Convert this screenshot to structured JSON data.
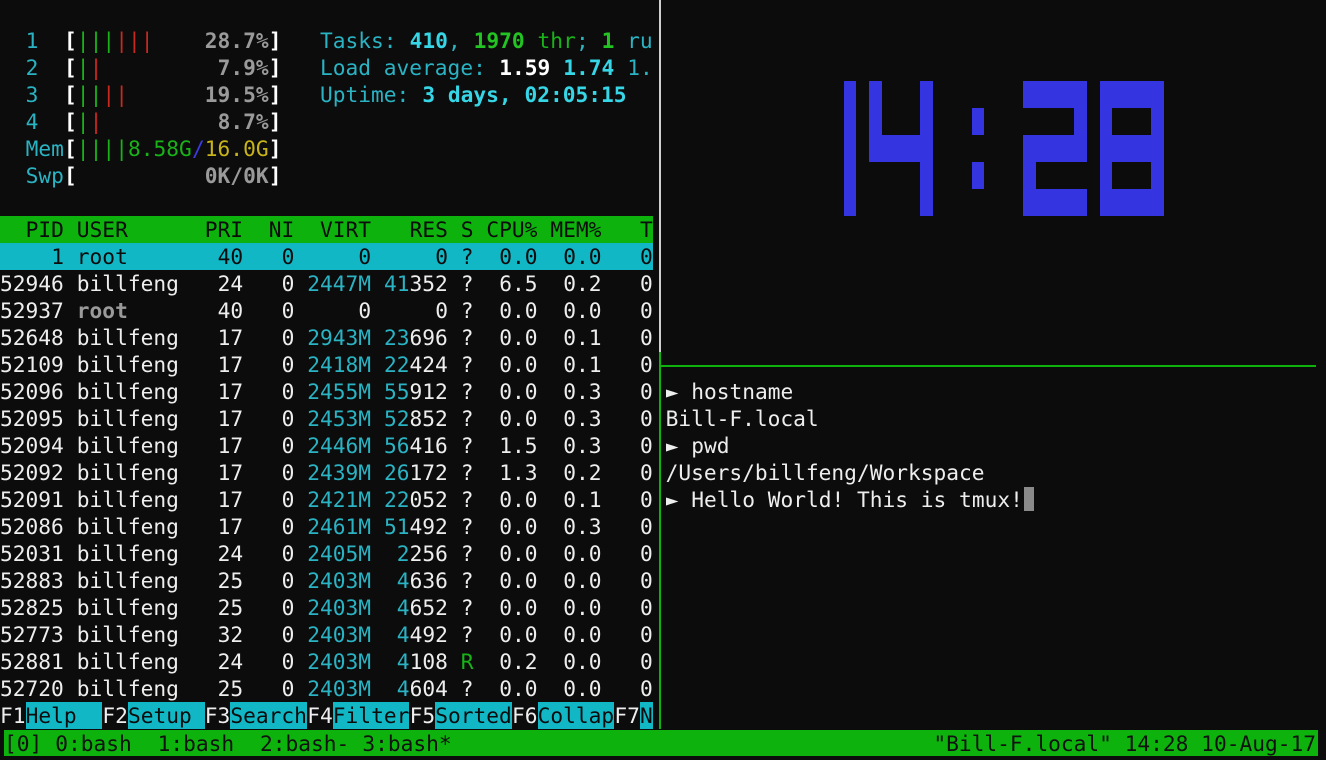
{
  "htop": {
    "cpus": [
      {
        "id": "1",
        "green_bars": 3,
        "red_bars": 3,
        "percent": "28.7%"
      },
      {
        "id": "2",
        "green_bars": 1,
        "red_bars": 1,
        "percent": "7.9%"
      },
      {
        "id": "3",
        "green_bars": 2,
        "red_bars": 2,
        "percent": "19.5%"
      },
      {
        "id": "4",
        "green_bars": 1,
        "red_bars": 1,
        "percent": "8.7%"
      }
    ],
    "mem": {
      "label": "Mem",
      "green_bars": 4,
      "used": "8.58G",
      "sep": "/",
      "total": "16.0G"
    },
    "swp": {
      "label": "Swp",
      "value": "0K/0K"
    },
    "tasks": {
      "label": "Tasks: ",
      "count": "410",
      "comma": ", ",
      "threads": "1970",
      "thr": " thr",
      "semi": "; ",
      "running": "1",
      "running_label": " ru"
    },
    "load": {
      "label": "Load average: ",
      "one": "1.59",
      "five": "1.74",
      "fifteen": "1."
    },
    "uptime": {
      "label": "Uptime: ",
      "value": "3 days, 02:05:15"
    },
    "columns": {
      "pid": "PID",
      "user": "USER",
      "pri": "PRI",
      "ni": "NI",
      "virt": "VIRT",
      "res": "RES",
      "s": "S",
      "cpu": "CPU%",
      "mem": "MEM%",
      "time": "T"
    },
    "processes": [
      {
        "pid": "1",
        "user": "root",
        "pri": "40",
        "ni": "0",
        "virt": "0",
        "res": "0",
        "s": "?",
        "cpu": "0.0",
        "mem": "0.0",
        "time": "0:",
        "selected": true
      },
      {
        "pid": "52946",
        "user": "billfeng",
        "pri": "24",
        "ni": "0",
        "virt": "2447M",
        "res": "41352",
        "s": "?",
        "cpu": "6.5",
        "mem": "0.2",
        "time": "0:"
      },
      {
        "pid": "52937",
        "user": "root",
        "pri": "40",
        "ni": "0",
        "virt": "0",
        "res": "0",
        "s": "?",
        "cpu": "0.0",
        "mem": "0.0",
        "time": "0:"
      },
      {
        "pid": "52648",
        "user": "billfeng",
        "pri": "17",
        "ni": "0",
        "virt": "2943M",
        "res": "23696",
        "s": "?",
        "cpu": "0.0",
        "mem": "0.1",
        "time": "0:"
      },
      {
        "pid": "52109",
        "user": "billfeng",
        "pri": "17",
        "ni": "0",
        "virt": "2418M",
        "res": "22424",
        "s": "?",
        "cpu": "0.0",
        "mem": "0.1",
        "time": "0:"
      },
      {
        "pid": "52096",
        "user": "billfeng",
        "pri": "17",
        "ni": "0",
        "virt": "2455M",
        "res": "55912",
        "s": "?",
        "cpu": "0.0",
        "mem": "0.3",
        "time": "0:"
      },
      {
        "pid": "52095",
        "user": "billfeng",
        "pri": "17",
        "ni": "0",
        "virt": "2453M",
        "res": "52852",
        "s": "?",
        "cpu": "0.0",
        "mem": "0.3",
        "time": "0:"
      },
      {
        "pid": "52094",
        "user": "billfeng",
        "pri": "17",
        "ni": "0",
        "virt": "2446M",
        "res": "56416",
        "s": "?",
        "cpu": "1.5",
        "mem": "0.3",
        "time": "0:"
      },
      {
        "pid": "52092",
        "user": "billfeng",
        "pri": "17",
        "ni": "0",
        "virt": "2439M",
        "res": "26172",
        "s": "?",
        "cpu": "1.3",
        "mem": "0.2",
        "time": "0:"
      },
      {
        "pid": "52091",
        "user": "billfeng",
        "pri": "17",
        "ni": "0",
        "virt": "2421M",
        "res": "22052",
        "s": "?",
        "cpu": "0.0",
        "mem": "0.1",
        "time": "0:"
      },
      {
        "pid": "52086",
        "user": "billfeng",
        "pri": "17",
        "ni": "0",
        "virt": "2461M",
        "res": "51492",
        "s": "?",
        "cpu": "0.0",
        "mem": "0.3",
        "time": "0:"
      },
      {
        "pid": "52031",
        "user": "billfeng",
        "pri": "24",
        "ni": "0",
        "virt": "2405M",
        "res": "2256",
        "s": "?",
        "cpu": "0.0",
        "mem": "0.0",
        "time": "0:"
      },
      {
        "pid": "52883",
        "user": "billfeng",
        "pri": "25",
        "ni": "0",
        "virt": "2403M",
        "res": "4636",
        "s": "?",
        "cpu": "0.0",
        "mem": "0.0",
        "time": "0:"
      },
      {
        "pid": "52825",
        "user": "billfeng",
        "pri": "25",
        "ni": "0",
        "virt": "2403M",
        "res": "4652",
        "s": "?",
        "cpu": "0.0",
        "mem": "0.0",
        "time": "0:"
      },
      {
        "pid": "52773",
        "user": "billfeng",
        "pri": "32",
        "ni": "0",
        "virt": "2403M",
        "res": "4492",
        "s": "?",
        "cpu": "0.0",
        "mem": "0.0",
        "time": "0:"
      },
      {
        "pid": "52881",
        "user": "billfeng",
        "pri": "24",
        "ni": "0",
        "virt": "2403M",
        "res": "4108",
        "s": "R",
        "cpu": "0.2",
        "mem": "0.0",
        "time": "0:"
      },
      {
        "pid": "52720",
        "user": "billfeng",
        "pri": "25",
        "ni": "0",
        "virt": "2403M",
        "res": "4604",
        "s": "?",
        "cpu": "0.0",
        "mem": "0.0",
        "time": "0:"
      }
    ],
    "fkeys": [
      {
        "key": "F1",
        "label": "Help  "
      },
      {
        "key": "F2",
        "label": "Setup "
      },
      {
        "key": "F3",
        "label": "Search"
      },
      {
        "key": "F4",
        "label": "Filter"
      },
      {
        "key": "F5",
        "label": "Sorted"
      },
      {
        "key": "F6",
        "label": "Collap"
      },
      {
        "key": "F7",
        "label": "N"
      }
    ]
  },
  "clock": {
    "time": "14:28",
    "color": "#3434e0"
  },
  "terminal": {
    "prompt_symbol": "►",
    "lines": [
      {
        "prompt": true,
        "text": "hostname"
      },
      {
        "prompt": false,
        "text": "Bill-F.local"
      },
      {
        "prompt": true,
        "text": "pwd"
      },
      {
        "prompt": false,
        "text": "/Users/billfeng/Workspace"
      },
      {
        "prompt": true,
        "text": "Hello World! This is tmux!"
      }
    ]
  },
  "statusbar": {
    "session": "[0]",
    "windows": [
      "0:bash",
      "1:bash",
      "2:bash-",
      "3:bash*"
    ],
    "right": "\"Bill-F.local\" 14:28 10-Aug-17",
    "color": "#0db20d"
  }
}
